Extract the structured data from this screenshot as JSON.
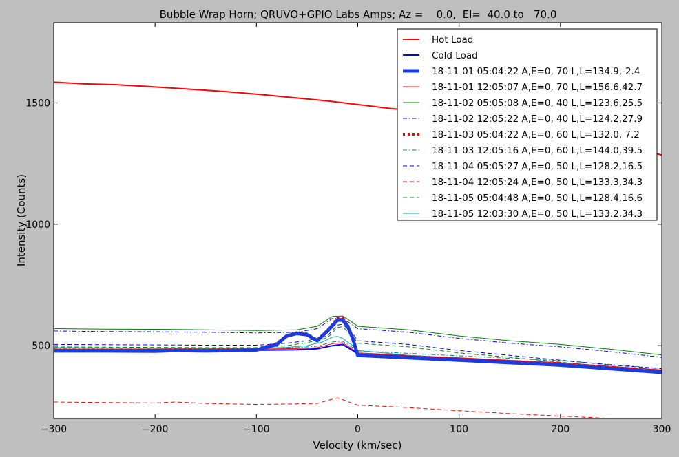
{
  "chart_data": {
    "type": "line",
    "title": "Bubble Wrap Horn; QRUVO+GPIO Labs Amps; Az =    0.0,  El=  40.0 to   70.0",
    "xlabel": "Velocity (km/sec)",
    "ylabel": "Intensity (Counts)",
    "xlim": [
      -300,
      300
    ],
    "ylim": [
      200,
      1830
    ],
    "xticks": [
      -300,
      -200,
      -100,
      0,
      100,
      200,
      300
    ],
    "xtick_labels": [
      "−300",
      "−200",
      "−100",
      "0",
      "100",
      "200",
      "300"
    ],
    "yticks": [
      500,
      1000,
      1500
    ],
    "ytick_labels": [
      "500",
      "1000",
      "1500"
    ],
    "grid": false,
    "legend_position": "top-right",
    "series": [
      {
        "name": "Hot  Load",
        "color": "#ff0000",
        "dash": "solid",
        "width": 2,
        "x": [
          -300,
          -270,
          -240,
          -210,
          -180,
          -150,
          -120,
          -90,
          -60,
          -30,
          0,
          30,
          60,
          90,
          120,
          150,
          180,
          210,
          240,
          270,
          300
        ],
        "y": [
          1585,
          1578,
          1575,
          1568,
          1560,
          1552,
          1543,
          1532,
          1520,
          1508,
          1493,
          1478,
          1465,
          1451,
          1433,
          1416,
          1395,
          1370,
          1345,
          1320,
          1285
        ]
      },
      {
        "name": "Cold Load",
        "color": "#0000ff",
        "dash": "solid",
        "width": 2,
        "x": [
          -300,
          -200,
          -100,
          -60,
          -40,
          -25,
          -15,
          -5,
          0,
          100,
          200,
          300
        ],
        "y": [
          482,
          482,
          481,
          483,
          487,
          500,
          505,
          480,
          465,
          446,
          425,
          395
        ]
      },
      {
        "name": "18-11-01 05:04:22 A,E=0,  70 L,L=134.9,-2.4",
        "color": "#1a3cdd",
        "dash": "solid",
        "width": 5,
        "x": [
          -300,
          -250,
          -200,
          -180,
          -150,
          -120,
          -100,
          -80,
          -70,
          -60,
          -50,
          -40,
          -30,
          -20,
          -15,
          -10,
          -5,
          0,
          50,
          100,
          150,
          200,
          250,
          300
        ],
        "y": [
          478,
          478,
          477,
          480,
          478,
          480,
          482,
          505,
          540,
          550,
          545,
          520,
          560,
          605,
          605,
          580,
          530,
          460,
          450,
          440,
          430,
          420,
          405,
          390
        ]
      },
      {
        "name": "18-11-01 12:05:07 A,E=0,  70 L,L=156.6,42.7",
        "color": "#ff0000",
        "dash": "solid",
        "width": 1,
        "x": [
          -300,
          -200,
          -100,
          -60,
          -40,
          -25,
          -15,
          -5,
          0,
          100,
          200,
          300
        ],
        "y": [
          486,
          486,
          486,
          488,
          492,
          508,
          512,
          485,
          470,
          450,
          430,
          400
        ]
      },
      {
        "name": "18-11-02 05:05:08 A,E=0,  40 L,L=123.6,25.5",
        "color": "#008000",
        "dash": "solid",
        "width": 1,
        "x": [
          -300,
          -250,
          -200,
          -150,
          -100,
          -60,
          -40,
          -25,
          -15,
          -5,
          0,
          50,
          100,
          150,
          200,
          250,
          300
        ],
        "y": [
          570,
          568,
          567,
          565,
          562,
          565,
          580,
          620,
          622,
          595,
          580,
          565,
          540,
          520,
          505,
          485,
          462
        ]
      },
      {
        "name": "18-11-02 12:05:22 A,E=0,  40 L,L=124.2,27.9",
        "color": "#0000ff",
        "dash": "dashdot",
        "width": 1,
        "x": [
          -300,
          -250,
          -200,
          -150,
          -100,
          -60,
          -40,
          -25,
          -15,
          -5,
          0,
          50,
          100,
          150,
          200,
          250,
          300
        ],
        "y": [
          560,
          558,
          557,
          555,
          552,
          555,
          570,
          612,
          612,
          585,
          570,
          555,
          530,
          510,
          495,
          475,
          452
        ]
      },
      {
        "name": "18-11-03 05:04:22 A,E=0,  60 L,L=132.0, 7.2",
        "color": "#ff0000",
        "dash": "dot",
        "width": 4,
        "x": [
          -300,
          -250,
          -200,
          -180,
          -150,
          -120,
          -100,
          -80,
          -70,
          -60,
          -50,
          -40,
          -30,
          -20,
          -15,
          -10,
          -5,
          0,
          50,
          100,
          150,
          200,
          250,
          300
        ],
        "y": [
          482,
          482,
          481,
          484,
          482,
          484,
          486,
          508,
          543,
          553,
          548,
          523,
          563,
          612,
          615,
          585,
          535,
          465,
          455,
          445,
          435,
          425,
          410,
          393
        ]
      },
      {
        "name": "18-11-03 12:05:16 A,E=0,  60 L,L=144.0,39.5",
        "color": "#008080",
        "dash": "dashdot",
        "width": 1,
        "x": [
          -300,
          -200,
          -100,
          -60,
          -40,
          -25,
          -15,
          -5,
          0,
          100,
          200,
          300
        ],
        "y": [
          490,
          490,
          490,
          492,
          498,
          515,
          518,
          492,
          478,
          458,
          438,
          406
        ]
      },
      {
        "name": "18-11-04 05:05:27 A,E=0,  50 L,L=128.2,16.5",
        "color": "#0000ff",
        "dash": "dashed",
        "width": 1,
        "x": [
          -300,
          -250,
          -200,
          -150,
          -100,
          -70,
          -50,
          -30,
          -20,
          -15,
          -5,
          0,
          50,
          100,
          150,
          200,
          250,
          300
        ],
        "y": [
          505,
          504,
          503,
          502,
          502,
          510,
          520,
          540,
          585,
          588,
          550,
          520,
          505,
          480,
          460,
          440,
          420,
          405
        ]
      },
      {
        "name": "18-11-04 12:05:24 A,E=0,  50 L,L=133.3,34.3",
        "color": "#ff0000",
        "dash": "dashed",
        "width": 1,
        "x": [
          -300,
          -250,
          -200,
          -180,
          -150,
          -100,
          -60,
          -40,
          -25,
          -20,
          -15,
          -5,
          0,
          50,
          100,
          150,
          200,
          250,
          300
        ],
        "y": [
          268,
          266,
          264,
          268,
          262,
          258,
          260,
          262,
          280,
          285,
          278,
          262,
          255,
          245,
          232,
          220,
          210,
          200,
          195
        ]
      },
      {
        "name": "18-11-05 05:04:48 A,E=0,  50 L,L=128.4,16.6",
        "color": "#008000",
        "dash": "dashed",
        "width": 1,
        "x": [
          -300,
          -250,
          -200,
          -150,
          -100,
          -70,
          -50,
          -30,
          -20,
          -15,
          -5,
          0,
          50,
          100,
          150,
          200,
          250,
          300
        ],
        "y": [
          495,
          494,
          493,
          492,
          492,
          500,
          512,
          532,
          575,
          578,
          540,
          510,
          495,
          470,
          452,
          432,
          412,
          398
        ]
      },
      {
        "name": "18-11-05 12:03:30 A,E=0,  50 L,L=133.2,34.3",
        "color": "#00aaaa",
        "dash": "solid",
        "width": 1,
        "x": [
          -300,
          -250,
          -200,
          -150,
          -100,
          -70,
          -50,
          -35,
          -25,
          -20,
          -15,
          -5,
          0,
          50,
          100,
          150,
          200,
          250,
          300
        ],
        "y": [
          492,
          491,
          490,
          489,
          489,
          493,
          500,
          515,
          535,
          538,
          530,
          500,
          480,
          460,
          445,
          430,
          415,
          400,
          388
        ]
      }
    ]
  }
}
